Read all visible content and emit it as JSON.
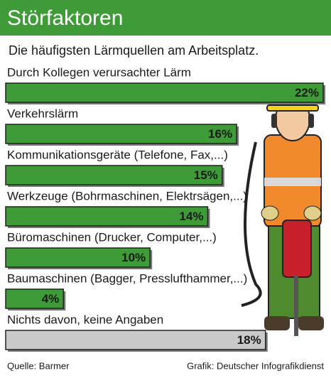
{
  "chart_data": {
    "type": "bar",
    "title": "Störfaktoren",
    "subtitle": "Die häufigsten Lärmquellen am Arbeitsplatz.",
    "categories": [
      "Durch Kollegen verursachter Lärm",
      "Verkehrslärm",
      "Kommunikationsgeräte (Telefone, Fax,...)",
      "Werkzeuge (Bohrmaschinen, Elektrsägen,...)",
      "Büromaschinen (Drucker, Computer,...)",
      "Baumaschinen (Bagger, Presslufthammer,...)",
      "Nichts davon, keine Angaben"
    ],
    "values": [
      22,
      16,
      15,
      14,
      10,
      4,
      18
    ],
    "value_labels": [
      "22%",
      "16%",
      "15%",
      "14%",
      "10%",
      "4%",
      "18%"
    ],
    "colors": [
      "#3f9b38",
      "#3f9b38",
      "#3f9b38",
      "#3f9b38",
      "#3f9b38",
      "#3f9b38",
      "#c9c9c9"
    ],
    "source": "Quelle: Barmer",
    "credit": "Grafik: Deutscher Infografikdienst"
  }
}
